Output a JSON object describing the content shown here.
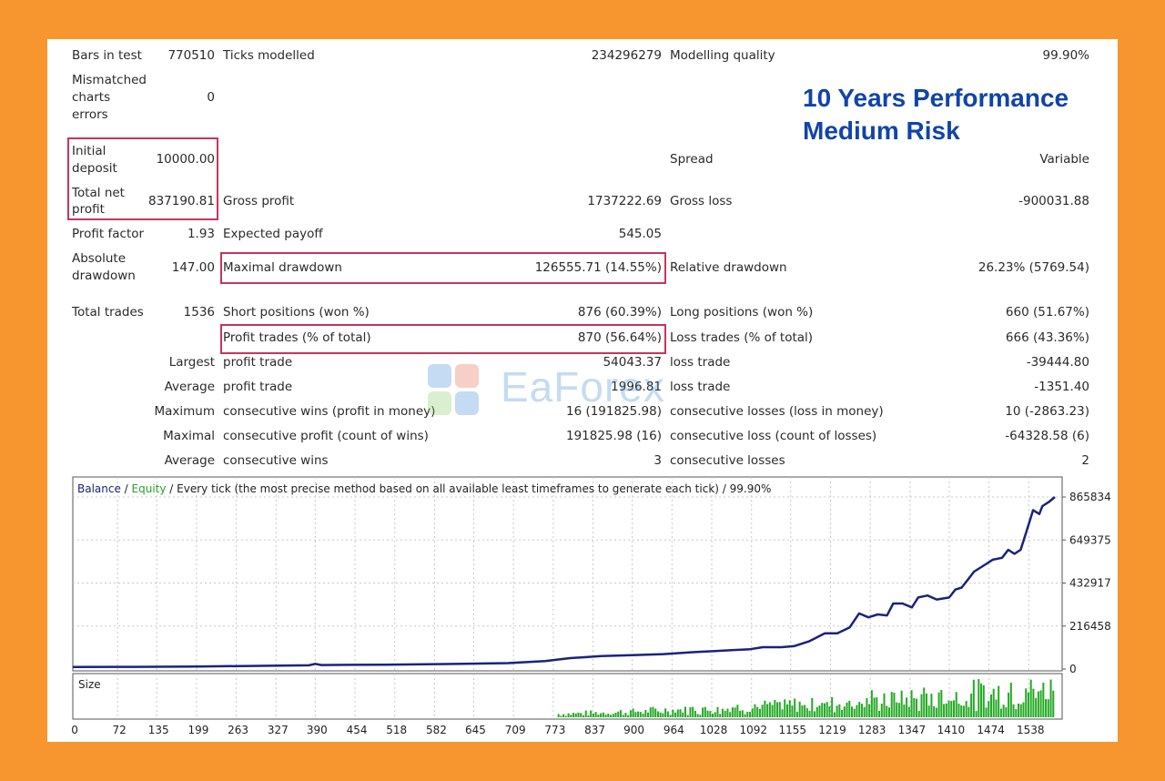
{
  "stats": {
    "bars_in_test_label": "Bars in test",
    "bars_in_test_value": "770510",
    "ticks_modelled_label": "Ticks modelled",
    "ticks_modelled_value": "234296279",
    "modelling_quality_label": "Modelling quality",
    "modelling_quality_value": "99.90%",
    "mismatched_label_1": "Mismatched",
    "mismatched_label_2": "charts",
    "mismatched_label_3": "errors",
    "mismatched_value": "0",
    "initial_deposit_label_1": "Initial",
    "initial_deposit_label_2": "deposit",
    "initial_deposit_value": "10000.00",
    "spread_label": "Spread",
    "spread_value": "Variable",
    "total_net_profit_label_1": "Total net",
    "total_net_profit_label_2": "profit",
    "total_net_profit_value": "837190.81",
    "gross_profit_label": "Gross profit",
    "gross_profit_value": "1737222.69",
    "gross_loss_label": "Gross loss",
    "gross_loss_value": "-900031.88",
    "profit_factor_label": "Profit factor",
    "profit_factor_value": "1.93",
    "expected_payoff_label": "Expected payoff",
    "expected_payoff_value": "545.05",
    "absolute_drawdown_label_1": "Absolute",
    "absolute_drawdown_label_2": "drawdown",
    "absolute_drawdown_value": "147.00",
    "maximal_drawdown_label": "Maximal drawdown",
    "maximal_drawdown_value": "126555.71 (14.55%)",
    "relative_drawdown_label": "Relative drawdown",
    "relative_drawdown_value": "26.23% (5769.54)",
    "total_trades_label": "Total trades",
    "total_trades_value": "1536",
    "short_positions_label": "Short positions (won %)",
    "short_positions_value": "876 (60.39%)",
    "long_positions_label": "Long positions (won %)",
    "long_positions_value": "660 (51.67%)",
    "profit_trades_label": "Profit trades (% of total)",
    "profit_trades_value": "870 (56.64%)",
    "loss_trades_label": "Loss trades (% of total)",
    "loss_trades_value": "666 (43.36%)",
    "largest_label": "Largest",
    "largest_profit_label": "profit trade",
    "largest_profit_value": "54043.37",
    "largest_loss_label": "loss trade",
    "largest_loss_value": "-39444.80",
    "average_label": "Average",
    "average_profit_label": "profit trade",
    "average_profit_value": "1996.81",
    "average_loss_label": "loss trade",
    "average_loss_value": "-1351.40",
    "maximum_label": "Maximum",
    "max_consec_wins_label": "consecutive wins (profit in money)",
    "max_consec_wins_value": "16 (191825.98)",
    "max_consec_losses_label": "consecutive losses (loss in money)",
    "max_consec_losses_value": "10 (-2863.23)",
    "maximal_label": "Maximal",
    "maximal_consec_profit_label": "consecutive profit (count of wins)",
    "maximal_consec_profit_value": "191825.98 (16)",
    "maximal_consec_loss_label": "consecutive loss (count of losses)",
    "maximal_consec_loss_value": "-64328.58 (6)",
    "average2_label": "Average",
    "avg_consec_wins_label": "consecutive wins",
    "avg_consec_wins_value": "3",
    "avg_consec_losses_label": "consecutive losses",
    "avg_consec_losses_value": "2"
  },
  "headline": {
    "line1": "10 Years Performance",
    "line2": "Medium Risk"
  },
  "watermark": {
    "text": "EaForex"
  },
  "colors": {
    "balance": "#1a237e",
    "equity": "#2ca02c",
    "highlight_box": "#c8345a",
    "headline": "#1144aa",
    "frame": "#f7962f"
  },
  "chart_data": {
    "type": "line",
    "legend": {
      "balance": "Balance",
      "slash1": " / ",
      "equity": "Equity",
      "rest": " / Every tick (the most precise method based on all available least timeframes to generate each tick) / 99.90%"
    },
    "size_label": "Size",
    "y_ticks": [
      0,
      216458,
      432917,
      649375,
      865834
    ],
    "y_tick_labels": [
      "0",
      "216458",
      "432917",
      "649375",
      "865834"
    ],
    "ylim": [
      0,
      865834
    ],
    "x_ticks": [
      0,
      72,
      135,
      199,
      263,
      327,
      390,
      454,
      518,
      582,
      645,
      709,
      773,
      837,
      900,
      964,
      1028,
      1092,
      1155,
      1219,
      1283,
      1347,
      1410,
      1474,
      1538
    ],
    "xlim": [
      0,
      1580
    ],
    "grid": true,
    "series": [
      {
        "name": "Balance",
        "x": [
          0,
          100,
          200,
          300,
          380,
          390,
          400,
          500,
          600,
          700,
          760,
          800,
          850,
          900,
          950,
          1000,
          1030,
          1060,
          1090,
          1110,
          1140,
          1160,
          1185,
          1210,
          1230,
          1250,
          1265,
          1280,
          1295,
          1310,
          1320,
          1335,
          1350,
          1360,
          1375,
          1390,
          1410,
          1420,
          1430,
          1440,
          1450,
          1465,
          1480,
          1495,
          1505,
          1515,
          1525,
          1535,
          1545,
          1555,
          1560,
          1570,
          1580
        ],
        "values": [
          10000,
          11000,
          13000,
          16000,
          19000,
          26000,
          20000,
          22000,
          25000,
          30000,
          40000,
          55000,
          65000,
          70000,
          75000,
          85000,
          90000,
          95000,
          100000,
          110000,
          110000,
          115000,
          140000,
          180000,
          180000,
          210000,
          280000,
          260000,
          275000,
          270000,
          330000,
          330000,
          310000,
          360000,
          370000,
          350000,
          360000,
          400000,
          410000,
          450000,
          490000,
          520000,
          550000,
          560000,
          600000,
          580000,
          600000,
          700000,
          800000,
          780000,
          820000,
          840000,
          865834
        ]
      }
    ],
    "size_bars_note": "volume bars in lower panel"
  }
}
